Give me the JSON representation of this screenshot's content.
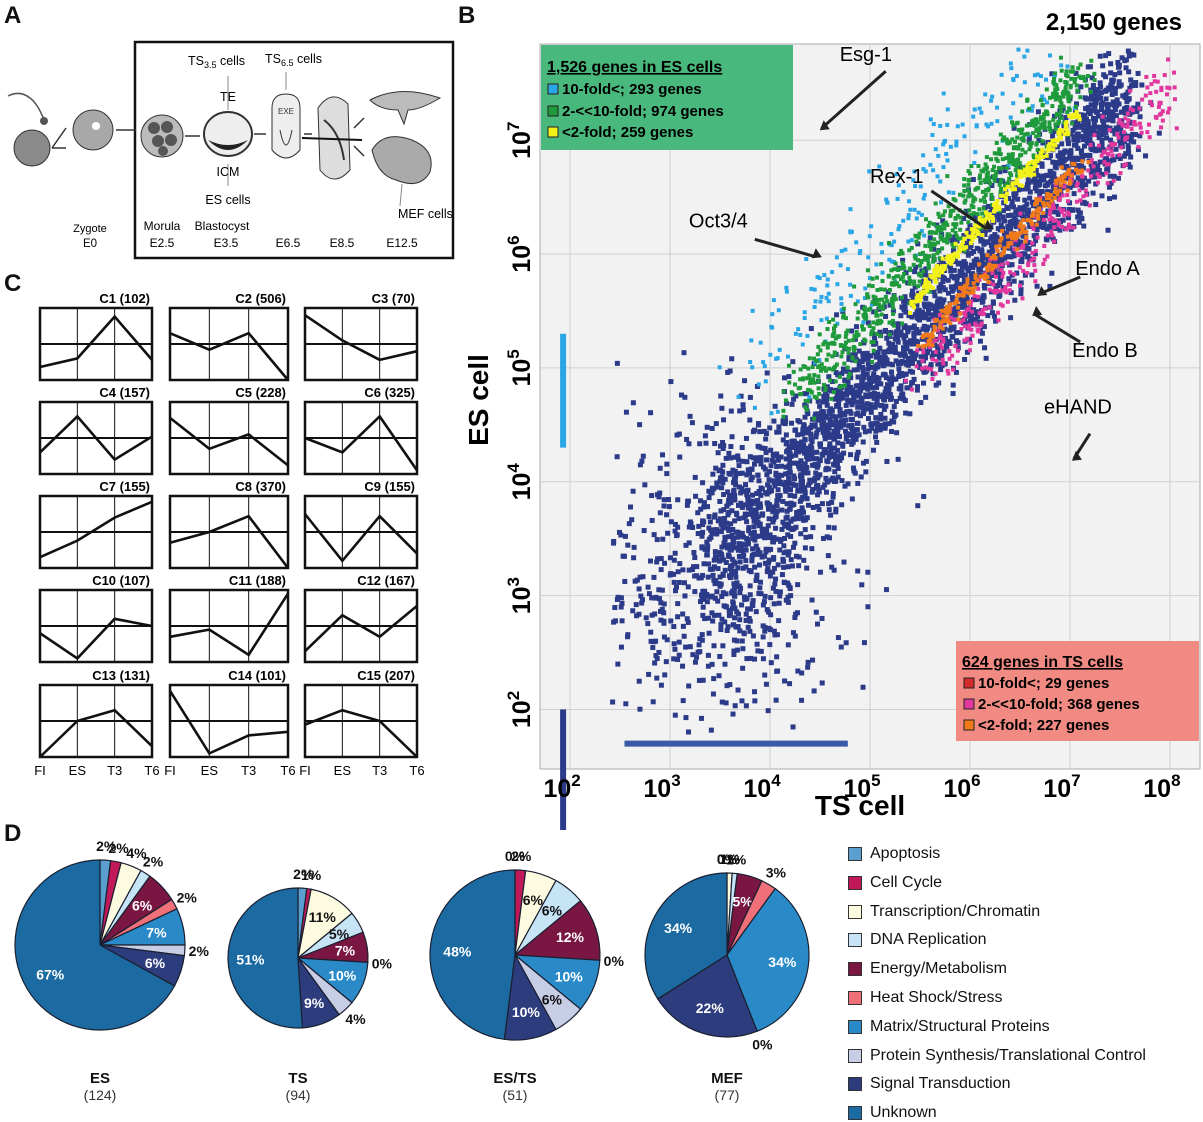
{
  "panels": {
    "a": "A",
    "b": "B",
    "c": "C",
    "d": "D"
  },
  "panel_a": {
    "stages": [
      {
        "name": "Zygote",
        "day": "E0"
      },
      {
        "name": "Morula",
        "day": "E2.5"
      },
      {
        "name": "Blastocyst",
        "day": "E3.5"
      },
      {
        "name": "",
        "day": "E6.5"
      },
      {
        "name": "",
        "day": "E8.5"
      },
      {
        "name": "",
        "day": "E12.5"
      }
    ],
    "ts35": "TS",
    "ts35_sub": "3.5",
    "ts65": "TS",
    "ts65_sub": "6.5",
    "cells_word": " cells",
    "te": "TE",
    "icm": "ICM",
    "exe": "EXE",
    "es_cells": "ES cells",
    "mef_cells": "MEF cells"
  },
  "chart_data": [
    {
      "type": "scatter",
      "title": "2,150 genes",
      "xlabel": "TS cell",
      "ylabel": "ES cell",
      "xscale": "log",
      "yscale": "log",
      "xlim": [
        50,
        200000000
      ],
      "ylim": [
        30,
        70000000
      ],
      "x_ticks": [
        {
          "base": "10",
          "exp": "2"
        },
        {
          "base": "10",
          "exp": "3"
        },
        {
          "base": "10",
          "exp": "4"
        },
        {
          "base": "10",
          "exp": "5"
        },
        {
          "base": "10",
          "exp": "6"
        },
        {
          "base": "10",
          "exp": "7"
        },
        {
          "base": "10",
          "exp": "8"
        }
      ],
      "y_ticks": [
        {
          "base": "10",
          "exp": "2"
        },
        {
          "base": "10",
          "exp": "3"
        },
        {
          "base": "10",
          "exp": "4"
        },
        {
          "base": "10",
          "exp": "5"
        },
        {
          "base": "10",
          "exp": "6"
        },
        {
          "base": "10",
          "exp": "7"
        }
      ],
      "legend_es": {
        "header": "1,526 genes in ES cells",
        "items": [
          {
            "label": "10-fold<; 293 genes",
            "color": "#2aa6e6"
          },
          {
            "label": "2-<<10-fold; 974 genes",
            "color": "#1f9b3c"
          },
          {
            "label": "<2-fold; 259 genes",
            "color": "#f2f21a"
          }
        ],
        "bg": "#49b87c",
        "position": "top-left"
      },
      "legend_ts": {
        "header": "624 genes in TS cells",
        "items": [
          {
            "label": "10-fold<; 29 genes",
            "color": "#d42a2a"
          },
          {
            "label": "2-<<10-fold; 368 genes",
            "color": "#e0389e"
          },
          {
            "label": "<2-fold; 227 genes",
            "color": "#f07a1a"
          }
        ],
        "bg": "#f08a82",
        "position": "bottom-right"
      },
      "annotations": [
        {
          "text": "Esg-1",
          "x": 30000,
          "y": 12000000
        },
        {
          "text": "Rex-1",
          "x": 1300000,
          "y": 1600000
        },
        {
          "text": "Oct3/4",
          "x": 25000,
          "y": 900000
        },
        {
          "text": "Endo A",
          "x": 4500000,
          "y": 420000
        },
        {
          "text": "Endo B",
          "x": 4000000,
          "y": 280000
        },
        {
          "text": "eHAND",
          "x": 10000000,
          "y": 15000
        }
      ],
      "main_color": "#2c3a8a"
    },
    {
      "type": "line",
      "subtype": "small-multiples",
      "x_categories": [
        "FI",
        "ES",
        "T3",
        "T6"
      ],
      "clusters": [
        {
          "name": "C1",
          "count": "(102)",
          "values": [
            0.18,
            0.3,
            0.88,
            0.28
          ]
        },
        {
          "name": "C2",
          "count": "(506)",
          "values": [
            0.65,
            0.42,
            0.65,
            -0.05
          ]
        },
        {
          "name": "C3",
          "count": "(70)",
          "values": [
            0.9,
            0.55,
            0.28,
            0.4
          ]
        },
        {
          "name": "C4",
          "count": "(157)",
          "values": [
            0.3,
            0.8,
            0.2,
            0.52
          ]
        },
        {
          "name": "C5",
          "count": "(228)",
          "values": [
            0.78,
            0.35,
            0.55,
            0.12
          ]
        },
        {
          "name": "C6",
          "count": "(325)",
          "values": [
            0.5,
            0.3,
            0.8,
            0.05
          ]
        },
        {
          "name": "C7",
          "count": "(155)",
          "values": [
            0.15,
            0.38,
            0.7,
            0.92
          ]
        },
        {
          "name": "C8",
          "count": "(370)",
          "values": [
            0.35,
            0.5,
            0.72,
            -0.05
          ]
        },
        {
          "name": "C9",
          "count": "(155)",
          "values": [
            0.75,
            0.1,
            0.72,
            0.2
          ]
        },
        {
          "name": "C10",
          "count": "(107)",
          "values": [
            0.4,
            0.05,
            0.6,
            0.5
          ]
        },
        {
          "name": "C11",
          "count": "(188)",
          "values": [
            0.35,
            0.45,
            0.1,
            0.95
          ]
        },
        {
          "name": "C12",
          "count": "(167)",
          "values": [
            0.15,
            0.65,
            0.35,
            0.78
          ]
        },
        {
          "name": "C13",
          "count": "(131)",
          "values": [
            -0.05,
            0.5,
            0.65,
            0.15
          ]
        },
        {
          "name": "C14",
          "count": "(101)",
          "values": [
            0.92,
            0.05,
            0.3,
            0.35
          ]
        },
        {
          "name": "C15",
          "count": "(207)",
          "values": [
            0.45,
            0.65,
            0.5,
            -0.05
          ]
        }
      ]
    },
    {
      "type": "pie",
      "categories": [
        "Apoptosis",
        "Cell Cycle",
        "Transcription/Chromatin",
        "DNA Replication",
        "Energy/Metabolism",
        "Heat Shock/Stress",
        "Matrix/Structural Proteins",
        "Protein Synthesis/Translational Control",
        "Signal Transduction",
        "Unknown"
      ],
      "colors": [
        "#5b9ed0",
        "#c01858",
        "#fdfbdf",
        "#c7e3f6",
        "#7a1642",
        "#f0707a",
        "#2a8ac8",
        "#c8cde6",
        "#2c3c7c",
        "#1c6aa2"
      ],
      "pies": [
        {
          "name": "ES",
          "count": "(124)",
          "values": [
            2,
            2,
            4,
            2,
            6,
            2,
            7,
            2,
            6,
            67
          ],
          "labels": [
            "2%",
            "2%",
            "4%",
            "2%",
            "6%",
            "2%",
            "7%",
            "2%",
            "6%",
            "67%"
          ]
        },
        {
          "name": "TS",
          "count": "(94)",
          "values": [
            2,
            1,
            11,
            5,
            7,
            0,
            10,
            4,
            9,
            51
          ],
          "labels": [
            "2%",
            "1%",
            "11%",
            "5%",
            "7%",
            "0%",
            "10%",
            "4%",
            "9%",
            "51%"
          ]
        },
        {
          "name": "ES/TS",
          "count": "(51)",
          "values": [
            0,
            2,
            6,
            6,
            12,
            0,
            10,
            6,
            10,
            48
          ],
          "labels": [
            "0%",
            "2%",
            "6%",
            "6%",
            "12%",
            "0%",
            "10%",
            "6%",
            "10%",
            "48%"
          ]
        },
        {
          "name": "MEF",
          "count": "(77)",
          "values": [
            0,
            0,
            1,
            1,
            5,
            3,
            34,
            0,
            22,
            34
          ],
          "labels": [
            "0%",
            "0%",
            "1%",
            "1%",
            "5%",
            "3%",
            "34%",
            "0%",
            "22%",
            "34%"
          ]
        }
      ]
    }
  ]
}
